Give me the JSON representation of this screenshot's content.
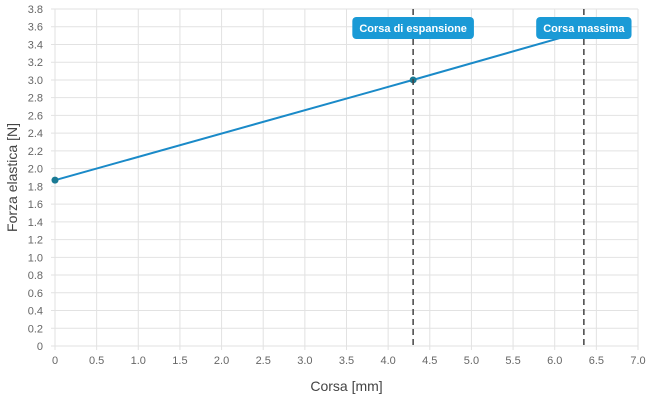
{
  "chart_data": {
    "type": "line",
    "title": "",
    "xlabel": "Corsa [mm]",
    "ylabel": "Forza elastica [N]",
    "xlim": [
      0,
      7.0
    ],
    "ylim": [
      0,
      3.8
    ],
    "x_ticks": [
      "0",
      "0.5",
      "1.0",
      "1.5",
      "2.0",
      "2.5",
      "3.0",
      "3.5",
      "4.0",
      "4.5",
      "5.0",
      "5.5",
      "6.0",
      "6.5",
      "7.0"
    ],
    "y_ticks": [
      "0",
      "0.2",
      "0.4",
      "0.6",
      "0.8",
      "1.0",
      "1.2",
      "1.4",
      "1.6",
      "1.8",
      "2.0",
      "2.2",
      "2.4",
      "2.6",
      "2.8",
      "3.0",
      "3.2",
      "3.4",
      "3.6",
      "3.8"
    ],
    "grid": true,
    "series": [
      {
        "points": [
          [
            0,
            1.87
          ],
          [
            4.3,
            3.0
          ],
          [
            6.35,
            3.55
          ]
        ],
        "markers": [
          [
            0,
            1.87
          ],
          [
            4.3,
            3.0
          ]
        ],
        "color": "#1a8ac8",
        "marker_color": "#1a7a94"
      }
    ],
    "annotations": [
      {
        "label": "Corsa di espansione",
        "x": 4.3,
        "line_color": "#444444",
        "badge_color": "#1a9ad6"
      },
      {
        "label": "Corsa massima",
        "x": 6.35,
        "line_color": "#444444",
        "badge_color": "#1a9ad6"
      }
    ]
  }
}
